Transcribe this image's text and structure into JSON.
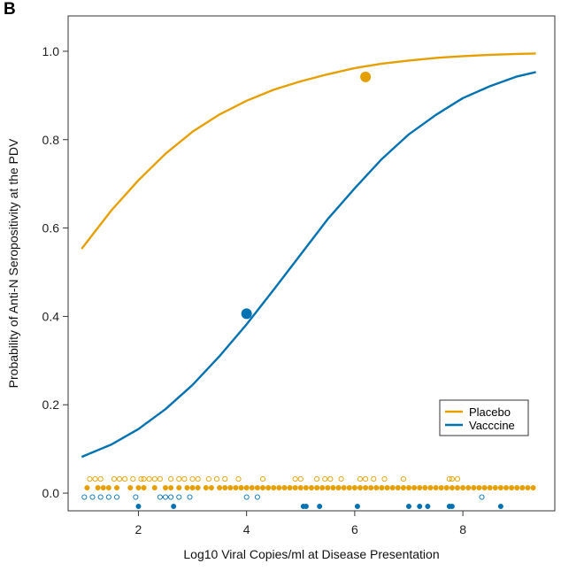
{
  "panel_label": "B",
  "colors": {
    "placebo": "#E69F00",
    "vaccine": "#0072B2",
    "axis": "#333333"
  },
  "chart_data": {
    "type": "line",
    "title": "",
    "xlabel": "Log10 Viral Copies/ml at Disease Presentation",
    "ylabel": "Probability of Anti-N Seropositivity at the PDV",
    "xlim": [
      0.7,
      9.7
    ],
    "ylim": [
      -0.04,
      1.08
    ],
    "xticks": [
      2,
      4,
      6,
      8
    ],
    "yticks": [
      "0.0",
      "0.2",
      "0.4",
      "0.6",
      "0.8",
      "1.0"
    ],
    "grid": false,
    "legend_position": "bottom-right",
    "series": [
      {
        "name": "Placebo",
        "color_key": "placebo",
        "x": [
          0.95,
          1.5,
          2.0,
          2.5,
          3.0,
          3.5,
          4.0,
          4.5,
          5.0,
          5.5,
          6.0,
          6.5,
          7.0,
          7.5,
          8.0,
          8.5,
          9.0,
          9.35
        ],
        "y": [
          0.553,
          0.64,
          0.708,
          0.768,
          0.818,
          0.857,
          0.888,
          0.913,
          0.932,
          0.948,
          0.962,
          0.972,
          0.979,
          0.985,
          0.989,
          0.992,
          0.994,
          0.995
        ],
        "point": {
          "x": 6.2,
          "y": 0.942
        }
      },
      {
        "name": "Vacccine",
        "color_key": "vaccine",
        "x": [
          0.95,
          1.5,
          2.0,
          2.5,
          3.0,
          3.5,
          4.0,
          4.5,
          5.0,
          5.5,
          6.0,
          6.5,
          7.0,
          7.5,
          8.0,
          8.5,
          9.0,
          9.35
        ],
        "y": [
          0.082,
          0.11,
          0.145,
          0.19,
          0.245,
          0.31,
          0.382,
          0.46,
          0.54,
          0.62,
          0.69,
          0.756,
          0.812,
          0.856,
          0.894,
          0.921,
          0.943,
          0.953
        ],
        "point": {
          "x": 4.0,
          "y": 0.406
        }
      }
    ],
    "rug": {
      "placebo_open_y": 0.032,
      "placebo_open_x": [
        1.1,
        1.2,
        1.3,
        1.55,
        1.65,
        1.75,
        1.9,
        2.05,
        2.1,
        2.2,
        2.3,
        2.4,
        2.6,
        2.75,
        2.85,
        3.0,
        3.1,
        3.3,
        3.45,
        3.6,
        3.85,
        4.3,
        4.9,
        5.0,
        5.3,
        5.45,
        5.55,
        5.75,
        6.1,
        6.2,
        6.35,
        6.55,
        6.9,
        7.75,
        7.8,
        7.9
      ],
      "placebo_filled_y": 0.012,
      "placebo_filled_x": [
        1.05,
        1.25,
        1.35,
        1.45,
        1.6,
        1.85,
        2.0,
        2.1,
        2.3,
        2.5,
        2.6,
        2.75,
        2.9,
        3.0,
        3.1,
        3.25,
        3.35,
        3.5,
        3.6,
        3.7,
        3.8,
        3.9,
        4.0,
        4.1,
        4.2,
        4.3,
        4.4,
        4.5,
        4.6,
        4.7,
        4.8,
        4.9,
        5.0,
        5.1,
        5.2,
        5.3,
        5.4,
        5.5,
        5.6,
        5.7,
        5.8,
        5.9,
        6.0,
        6.1,
        6.2,
        6.3,
        6.4,
        6.5,
        6.6,
        6.7,
        6.8,
        6.9,
        7.0,
        7.1,
        7.2,
        7.3,
        7.4,
        7.5,
        7.6,
        7.7,
        7.8,
        7.9,
        8.0,
        8.1,
        8.2,
        8.3,
        8.4,
        8.5,
        8.6,
        8.7,
        8.8,
        8.9,
        9.0,
        9.1,
        9.2,
        9.3
      ],
      "vaccine_open_y": -0.009,
      "vaccine_open_x": [
        1.0,
        1.15,
        1.3,
        1.45,
        1.6,
        1.95,
        2.4,
        2.5,
        2.6,
        2.75,
        2.95,
        4.0,
        4.2,
        8.35
      ],
      "vaccine_filled_y": -0.03,
      "vaccine_filled_x": [
        2.0,
        2.65,
        5.05,
        5.1,
        5.35,
        6.05,
        7.0,
        7.2,
        7.35,
        7.75,
        7.8,
        8.7
      ]
    }
  }
}
